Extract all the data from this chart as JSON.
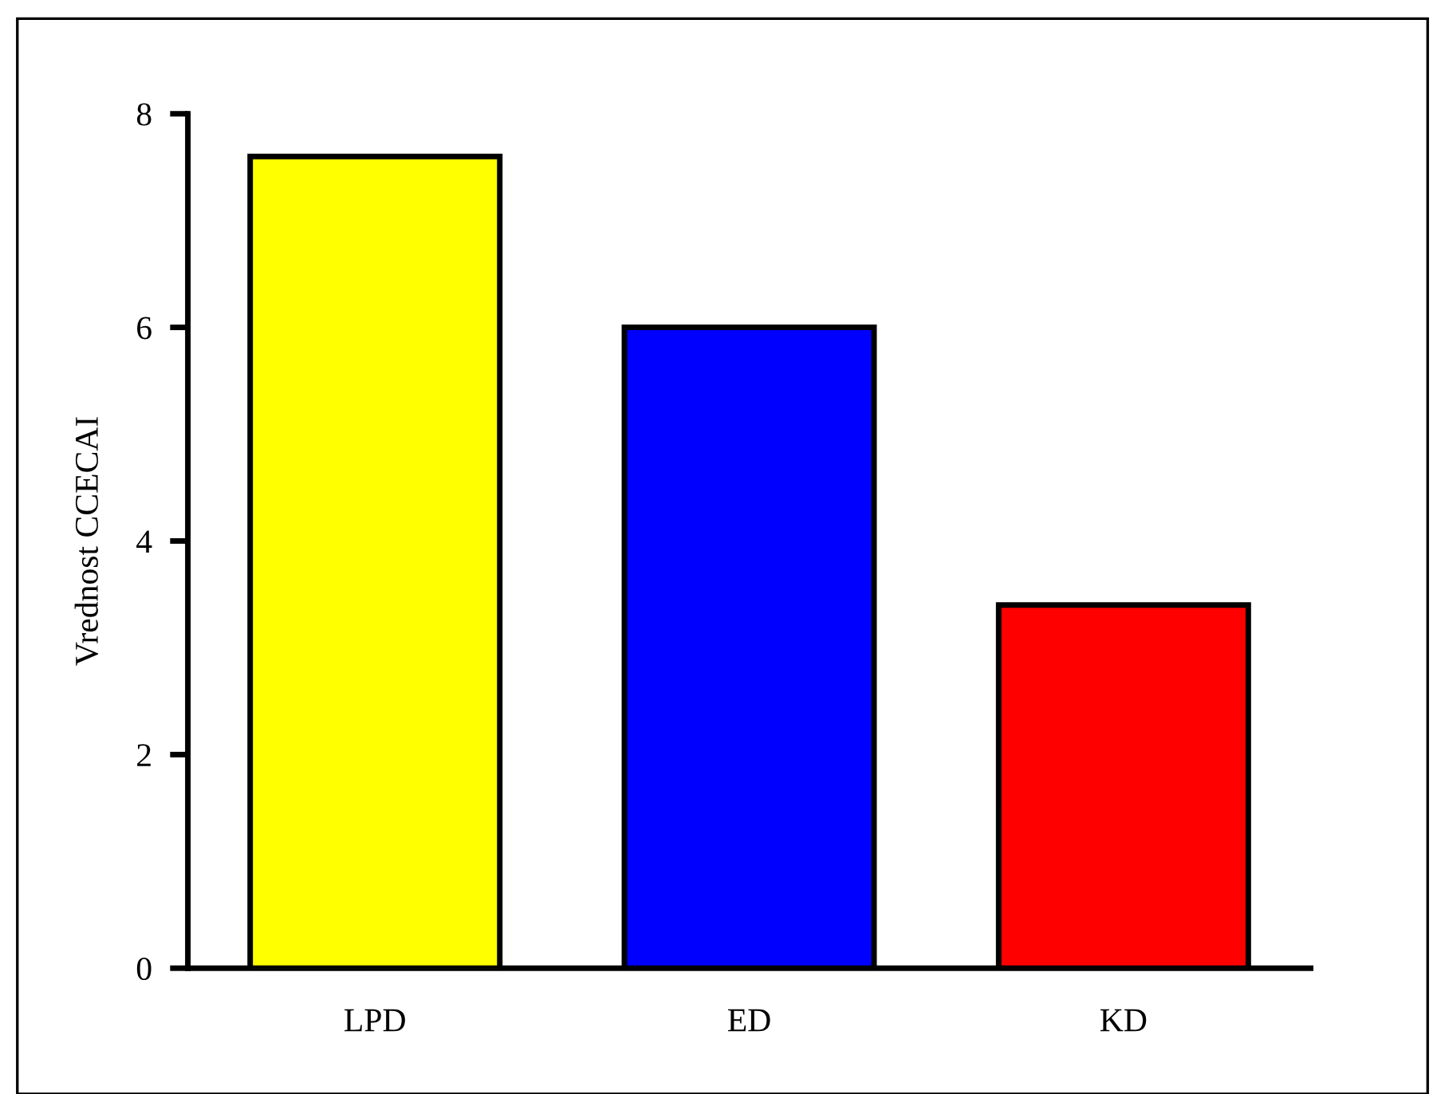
{
  "chart_data": {
    "type": "bar",
    "ylabel": "Vrednost CCECAI",
    "categories": [
      "LPD",
      "ED",
      "KD"
    ],
    "values": [
      7.6,
      6.0,
      3.4
    ],
    "colors": [
      "#ffff00",
      "#0000ff",
      "#ff0000"
    ],
    "ylim": [
      0,
      8
    ],
    "yticks": [
      0,
      2,
      4,
      6,
      8
    ],
    "grid": false,
    "legend": false
  }
}
